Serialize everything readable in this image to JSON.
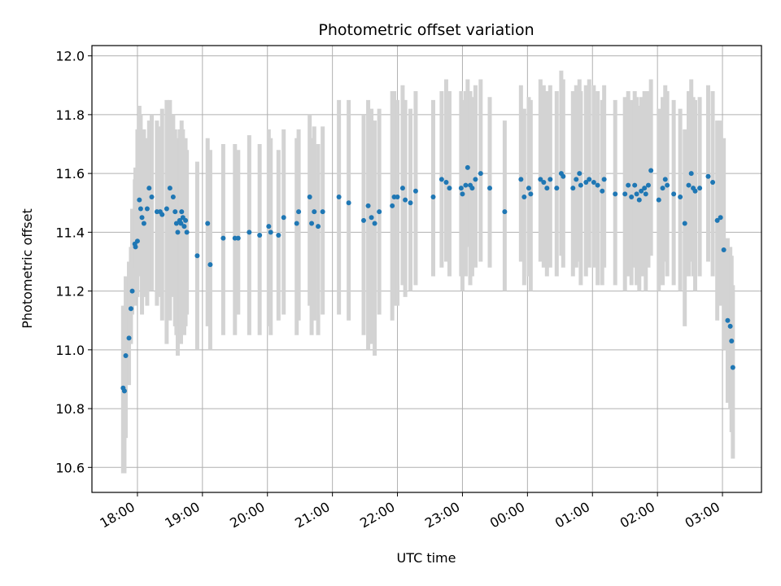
{
  "chart_data": {
    "type": "scatter",
    "title": "Photometric offset variation",
    "xlabel": "UTC time",
    "ylabel": "Photometric offset",
    "xlim": [
      17.3,
      27.6
    ],
    "ylim": [
      10.515,
      12.035
    ],
    "grid": true,
    "x_ticks": [
      {
        "value": 18,
        "label": "18:00"
      },
      {
        "value": 19,
        "label": "19:00"
      },
      {
        "value": 20,
        "label": "20:00"
      },
      {
        "value": 21,
        "label": "21:00"
      },
      {
        "value": 22,
        "label": "22:00"
      },
      {
        "value": 23,
        "label": "23:00"
      },
      {
        "value": 24,
        "label": "00:00"
      },
      {
        "value": 25,
        "label": "01:00"
      },
      {
        "value": 26,
        "label": "02:00"
      },
      {
        "value": 27,
        "label": "03:00"
      }
    ],
    "y_ticks": [
      {
        "value": 10.6,
        "label": "10.6"
      },
      {
        "value": 10.8,
        "label": "10.8"
      },
      {
        "value": 11.0,
        "label": "11.0"
      },
      {
        "value": 11.2,
        "label": "11.2"
      },
      {
        "value": 11.4,
        "label": "11.4"
      },
      {
        "value": 11.6,
        "label": "11.6"
      },
      {
        "value": 11.8,
        "label": "11.8"
      },
      {
        "value": 12.0,
        "label": "12.0"
      }
    ],
    "series": [
      {
        "name": "photometric offset",
        "color": "#1f77b4",
        "error_color": "#d3d3d3",
        "x": [
          17.78,
          17.8,
          17.82,
          17.87,
          17.9,
          17.92,
          17.96,
          17.97,
          18.0,
          18.03,
          18.05,
          18.07,
          18.1,
          18.15,
          18.18,
          18.22,
          18.3,
          18.35,
          18.38,
          18.45,
          18.5,
          18.55,
          18.58,
          18.6,
          18.62,
          18.65,
          18.67,
          18.68,
          18.7,
          18.72,
          18.74,
          18.76,
          18.92,
          19.08,
          19.12,
          19.32,
          19.5,
          19.55,
          19.72,
          19.88,
          20.02,
          20.05,
          20.17,
          20.25,
          20.45,
          20.48,
          20.65,
          20.68,
          20.72,
          20.78,
          20.85,
          21.1,
          21.25,
          21.48,
          21.55,
          21.6,
          21.65,
          21.72,
          21.92,
          21.95,
          22.0,
          22.08,
          22.12,
          22.2,
          22.28,
          22.55,
          22.68,
          22.75,
          22.8,
          22.98,
          23.0,
          23.05,
          23.08,
          23.12,
          23.15,
          23.2,
          23.28,
          23.42,
          23.65,
          23.9,
          23.95,
          24.02,
          24.05,
          24.2,
          24.25,
          24.3,
          24.35,
          24.45,
          24.52,
          24.55,
          24.7,
          24.75,
          24.8,
          24.82,
          24.9,
          24.95,
          25.02,
          25.08,
          25.15,
          25.18,
          25.35,
          25.5,
          25.55,
          25.6,
          25.65,
          25.68,
          25.72,
          25.75,
          25.8,
          25.82,
          25.86,
          25.9,
          26.02,
          26.08,
          26.12,
          26.15,
          26.25,
          26.35,
          26.42,
          26.48,
          26.52,
          26.55,
          26.58,
          26.65,
          26.78,
          26.85,
          26.92,
          26.97,
          27.02,
          27.08,
          27.12,
          27.14,
          27.16
        ],
        "y": [
          10.87,
          10.86,
          10.98,
          11.04,
          11.14,
          11.2,
          11.36,
          11.35,
          11.37,
          11.51,
          11.48,
          11.45,
          11.43,
          11.48,
          11.55,
          11.52,
          11.47,
          11.47,
          11.46,
          11.48,
          11.55,
          11.52,
          11.47,
          11.43,
          11.4,
          11.44,
          11.43,
          11.47,
          11.45,
          11.42,
          11.44,
          11.4,
          11.32,
          11.43,
          11.29,
          11.38,
          11.38,
          11.38,
          11.4,
          11.39,
          11.42,
          11.4,
          11.39,
          11.45,
          11.43,
          11.47,
          11.52,
          11.43,
          11.47,
          11.42,
          11.47,
          11.52,
          11.5,
          11.44,
          11.49,
          11.45,
          11.43,
          11.47,
          11.49,
          11.52,
          11.52,
          11.55,
          11.51,
          11.5,
          11.54,
          11.52,
          11.58,
          11.57,
          11.55,
          11.55,
          11.53,
          11.56,
          11.62,
          11.56,
          11.55,
          11.58,
          11.6,
          11.55,
          11.47,
          11.58,
          11.52,
          11.55,
          11.53,
          11.58,
          11.57,
          11.55,
          11.58,
          11.55,
          11.6,
          11.59,
          11.55,
          11.58,
          11.6,
          11.56,
          11.57,
          11.58,
          11.57,
          11.56,
          11.54,
          11.58,
          11.53,
          11.53,
          11.56,
          11.52,
          11.56,
          11.53,
          11.51,
          11.54,
          11.55,
          11.53,
          11.56,
          11.61,
          11.51,
          11.55,
          11.58,
          11.56,
          11.53,
          11.52,
          11.43,
          11.56,
          11.6,
          11.55,
          11.54,
          11.55,
          11.59,
          11.57,
          11.44,
          11.45,
          11.34,
          11.1,
          11.08,
          11.03,
          10.94
        ],
        "yerr_low": [
          10.58,
          10.58,
          10.7,
          10.88,
          11.02,
          11.12,
          11.15,
          11.28,
          11.18,
          11.28,
          11.25,
          11.12,
          11.18,
          11.15,
          11.2,
          11.2,
          11.15,
          11.18,
          11.1,
          11.02,
          11.1,
          11.18,
          11.08,
          11.05,
          10.98,
          11.08,
          11.02,
          11.1,
          11.12,
          11.05,
          11.08,
          11.12,
          11.0,
          11.08,
          11.0,
          11.05,
          11.05,
          11.12,
          11.05,
          11.05,
          11.08,
          11.05,
          11.1,
          11.12,
          11.05,
          11.1,
          11.15,
          11.05,
          11.1,
          11.05,
          11.12,
          11.12,
          11.1,
          11.05,
          11.0,
          11.02,
          10.98,
          11.12,
          11.1,
          11.15,
          11.15,
          11.22,
          11.18,
          11.2,
          11.22,
          11.25,
          11.28,
          11.3,
          11.25,
          11.25,
          11.2,
          11.25,
          11.35,
          11.22,
          11.25,
          11.28,
          11.3,
          11.28,
          11.2,
          11.3,
          11.22,
          11.25,
          11.2,
          11.3,
          11.28,
          11.25,
          11.28,
          11.25,
          11.32,
          11.28,
          11.25,
          11.28,
          11.3,
          11.22,
          11.25,
          11.28,
          11.28,
          11.22,
          11.22,
          11.28,
          11.22,
          11.2,
          11.25,
          11.22,
          11.28,
          11.22,
          11.2,
          11.25,
          11.25,
          11.2,
          11.28,
          11.32,
          11.2,
          11.22,
          11.3,
          11.25,
          11.22,
          11.2,
          11.08,
          11.25,
          11.3,
          11.25,
          11.2,
          11.25,
          11.3,
          11.25,
          11.1,
          11.15,
          11.0,
          10.82,
          10.8,
          10.72,
          10.63
        ],
        "yerr_high": [
          11.15,
          11.15,
          11.25,
          11.3,
          11.35,
          11.48,
          11.58,
          11.62,
          11.75,
          11.83,
          11.8,
          11.7,
          11.75,
          11.72,
          11.78,
          11.8,
          11.78,
          11.76,
          11.82,
          11.85,
          11.85,
          11.8,
          11.75,
          11.72,
          11.7,
          11.75,
          11.72,
          11.78,
          11.75,
          11.7,
          11.72,
          11.68,
          11.64,
          11.72,
          11.68,
          11.7,
          11.7,
          11.68,
          11.73,
          11.7,
          11.75,
          11.72,
          11.68,
          11.75,
          11.72,
          11.75,
          11.8,
          11.72,
          11.76,
          11.7,
          11.76,
          11.85,
          11.85,
          11.8,
          11.85,
          11.82,
          11.78,
          11.82,
          11.88,
          11.88,
          11.85,
          11.9,
          11.85,
          11.82,
          11.88,
          11.85,
          11.88,
          11.92,
          11.88,
          11.88,
          11.85,
          11.88,
          11.92,
          11.88,
          11.86,
          11.9,
          11.92,
          11.86,
          11.78,
          11.9,
          11.82,
          11.86,
          11.85,
          11.92,
          11.9,
          11.88,
          11.9,
          11.88,
          11.95,
          11.92,
          11.88,
          11.9,
          11.92,
          11.88,
          11.9,
          11.92,
          11.9,
          11.88,
          11.85,
          11.9,
          11.85,
          11.86,
          11.88,
          11.85,
          11.88,
          11.86,
          11.83,
          11.86,
          11.88,
          11.85,
          11.88,
          11.92,
          11.82,
          11.86,
          11.9,
          11.88,
          11.85,
          11.82,
          11.75,
          11.88,
          11.92,
          11.86,
          11.85,
          11.86,
          11.9,
          11.88,
          11.78,
          11.78,
          11.72,
          11.38,
          11.35,
          11.32,
          11.22
        ]
      }
    ]
  }
}
